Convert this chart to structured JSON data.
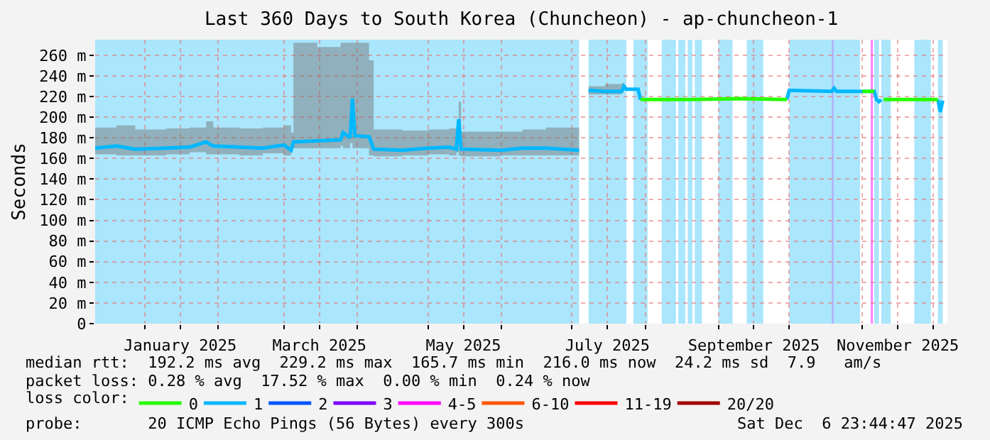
{
  "chart_data": {
    "type": "line",
    "title": "Last 360 Days to South Korea (Chuncheon) - ap-chuncheon-1",
    "ylabel": "Seconds",
    "legend_title": "loss color:",
    "legend": "bottom",
    "grid": true,
    "marker": "none",
    "line_style": "solid",
    "xlim": [
      "2024-12-11",
      "2025-12-07"
    ],
    "ylim": [
      0,
      275
    ],
    "xticks": [
      {
        "value": "2025-01-01",
        "label": null
      },
      {
        "value": "2025-01-16",
        "label": "January 2025"
      },
      {
        "value": "2025-02-01",
        "label": null
      },
      {
        "value": "2025-03-01",
        "label": null
      },
      {
        "value": "2025-03-16",
        "label": "March 2025"
      },
      {
        "value": "2025-04-01",
        "label": null
      },
      {
        "value": "2025-05-01",
        "label": null
      },
      {
        "value": "2025-05-16",
        "label": "May 2025"
      },
      {
        "value": "2025-06-01",
        "label": null
      },
      {
        "value": "2025-07-01",
        "label": null
      },
      {
        "value": "2025-07-16",
        "label": "July 2025"
      },
      {
        "value": "2025-08-01",
        "label": null
      },
      {
        "value": "2025-09-01",
        "label": null
      },
      {
        "value": "2025-09-16",
        "label": "September 2025"
      },
      {
        "value": "2025-10-01",
        "label": null
      },
      {
        "value": "2025-11-01",
        "label": null
      },
      {
        "value": "2025-11-16",
        "label": "November 2025"
      },
      {
        "value": "2025-12-01",
        "label": null
      }
    ],
    "yticks": [
      0,
      {
        "value": 20,
        "label": "20 m"
      },
      {
        "value": 40,
        "label": "40 m"
      },
      {
        "value": 60,
        "label": "60 m"
      },
      {
        "value": 80,
        "label": "80 m"
      },
      {
        "value": 100,
        "label": "100 m"
      },
      {
        "value": 120,
        "label": "120 m"
      },
      {
        "value": 140,
        "label": "140 m"
      },
      {
        "value": 160,
        "label": "160 m"
      },
      {
        "value": 180,
        "label": "180 m"
      },
      {
        "value": 200,
        "label": "200 m"
      },
      {
        "value": 220,
        "label": "220 m"
      },
      {
        "value": 240,
        "label": "240 m"
      },
      {
        "value": 260,
        "label": "260 m"
      }
    ],
    "series": [
      {
        "name": "0",
        "color": "#26ff00",
        "x": [
          "2025-07-30",
          "2025-08-20",
          "2025-09-10",
          "2025-09-30",
          "2025-10-15",
          "2025-11-01",
          "2025-11-06",
          "2025-11-08",
          "2025-11-10",
          "2025-11-20",
          "2025-12-03"
        ],
        "values": [
          217,
          217,
          218,
          217,
          null,
          225,
          225,
          null,
          217,
          217,
          217
        ]
      },
      {
        "name": "1",
        "color": "#00b8ff",
        "x": [
          "2024-12-11",
          "2024-12-20",
          "2024-12-28",
          "2025-01-10",
          "2025-01-20",
          "2025-01-27",
          "2025-01-30",
          "2025-02-10",
          "2025-02-20",
          "2025-03-01",
          "2025-03-04",
          "2025-03-05",
          "2025-03-15",
          "2025-03-25",
          "2025-03-26",
          "2025-03-29",
          "2025-03-30",
          "2025-03-31",
          "2025-04-06",
          "2025-04-08",
          "2025-04-20",
          "2025-05-01",
          "2025-05-10",
          "2025-05-13",
          "2025-05-14",
          "2025-05-15",
          "2025-06-01",
          "2025-06-10",
          "2025-06-20",
          "2025-07-04",
          "2025-07-06",
          "2025-07-08",
          "2025-07-15",
          "2025-07-22",
          "2025-07-23",
          "2025-07-24",
          "2025-07-29",
          "2025-07-30",
          "2025-08-20",
          "2025-09-10",
          "2025-09-30",
          "2025-10-01",
          "2025-10-19",
          "2025-10-20",
          "2025-10-21",
          "2025-11-06",
          "2025-11-07",
          "2025-11-08",
          "2025-11-09",
          "2025-11-20",
          "2025-12-03",
          "2025-12-04",
          "2025-12-05"
        ],
        "values": [
          170,
          172,
          169,
          170,
          171,
          176,
          172,
          171,
          170,
          173,
          168,
          176,
          177,
          178,
          185,
          180,
          218,
          182,
          181,
          169,
          168,
          170,
          171,
          169,
          198,
          169,
          168,
          170,
          170,
          168,
          null,
          226,
          225,
          225,
          230,
          227,
          227,
          217,
          null,
          null,
          217,
          226,
          225,
          228,
          225,
          225,
          217,
          215,
          217,
          null,
          217,
          205,
          216
        ],
        "lower": [
          163,
          164,
          163,
          163,
          164,
          166,
          164,
          164,
          163,
          165,
          163,
          170,
          170,
          170,
          172,
          170,
          175,
          170,
          170,
          163,
          162,
          163,
          164,
          163,
          166,
          163,
          162,
          163,
          163,
          163,
          null,
          222,
          222,
          222,
          224,
          null,
          null,
          null,
          null,
          null,
          null,
          null,
          null,
          null,
          null,
          null,
          null,
          null,
          null,
          null,
          null,
          null,
          null
        ],
        "upper": [
          190,
          192,
          188,
          189,
          190,
          196,
          190,
          189,
          190,
          192,
          185,
          272,
          268,
          272,
          272,
          272,
          272,
          272,
          255,
          188,
          187,
          188,
          189,
          186,
          215,
          186,
          186,
          188,
          190,
          190,
          null,
          230,
          232,
          233,
          240,
          null,
          null,
          null,
          null,
          null,
          null,
          null,
          null,
          null,
          null,
          null,
          null,
          null,
          null,
          null,
          null,
          null,
          null
        ]
      },
      {
        "name": "2",
        "color": "#0055ff"
      },
      {
        "name": "3",
        "color": "#7e00ff"
      },
      {
        "name": "4-5",
        "color": "#ff00ff"
      },
      {
        "name": "6-10",
        "color": "#ff5500"
      },
      {
        "name": "11-19",
        "color": "#ff0000"
      },
      {
        "name": "20/20",
        "color": "#a10000"
      }
    ],
    "bands": [
      {
        "axis": "x",
        "from": "2024-12-11",
        "to": "2025-07-04",
        "color": "#aae6fc"
      },
      {
        "axis": "x",
        "from": "2025-07-08",
        "to": "2025-07-24",
        "color": "#aae6fc"
      },
      {
        "axis": "x",
        "from": "2025-07-27",
        "to": "2025-08-02",
        "color": "#aae6fc"
      },
      {
        "axis": "x",
        "from": "2025-08-08",
        "to": "2025-08-14",
        "color": "#aae6fc"
      },
      {
        "axis": "x",
        "from": "2025-08-15",
        "to": "2025-08-18",
        "color": "#aae6fc"
      },
      {
        "axis": "x",
        "from": "2025-08-19",
        "to": "2025-08-21",
        "color": "#aae6fc"
      },
      {
        "axis": "x",
        "from": "2025-08-22",
        "to": "2025-08-25",
        "color": "#aae6fc"
      },
      {
        "axis": "x",
        "from": "2025-09-01",
        "to": "2025-09-07",
        "color": "#aae6fc"
      },
      {
        "axis": "x",
        "from": "2025-09-13",
        "to": "2025-09-20",
        "color": "#aae6fc"
      },
      {
        "axis": "x",
        "from": "2025-10-01",
        "to": "2025-10-19",
        "color": "#aae6fc"
      },
      {
        "axis": "x",
        "from": "2025-10-19",
        "to": "2025-10-20",
        "color": "#a8b8f8"
      },
      {
        "axis": "x",
        "from": "2025-10-20",
        "to": "2025-10-31",
        "color": "#aae6fc"
      },
      {
        "axis": "x",
        "from": "2025-11-06",
        "to": "2025-11-08",
        "color": "#aae6fc"
      },
      {
        "axis": "x",
        "from": "2025-11-09",
        "to": "2025-11-13",
        "color": "#aae6fc"
      },
      {
        "axis": "x",
        "from": "2025-11-23",
        "to": "2025-11-30",
        "color": "#aae6fc"
      },
      {
        "axis": "x",
        "from": "2025-12-03",
        "to": "2025-12-05",
        "color": "#aae6fc"
      }
    ],
    "ref_lines": [
      {
        "axis": "x",
        "value": "2025-11-05",
        "color": "#ff80ff"
      }
    ],
    "annotations": [
      "median rtt:  192.2 ms avg  229.2 ms max  165.7 ms min  216.0 ms now  24.2 ms sd  7.9   am/s",
      "packet loss: 0.28 % avg  17.52 % max  0.00 % min  0.24 % now",
      "probe:       20 ICMP Echo Pings (56 Bytes) every 300s",
      "Sat Dec  6 23:44:47 2025"
    ]
  }
}
